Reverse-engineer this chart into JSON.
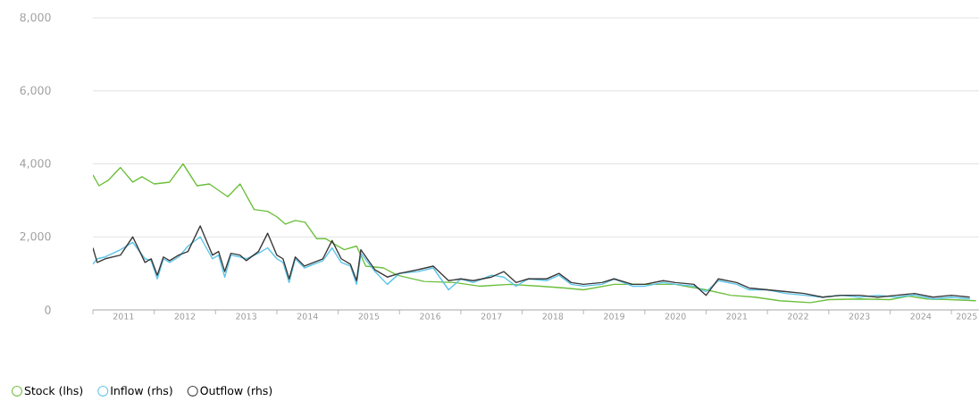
{
  "chart_data": {
    "type": "line",
    "x": [
      2011.0,
      2011.07,
      2011.2,
      2011.45,
      2011.65,
      2011.85,
      2011.95,
      2012.05,
      2012.15,
      2012.25,
      2012.4,
      2012.55,
      2012.75,
      2012.95,
      2013.05,
      2013.15,
      2013.25,
      2013.4,
      2013.5,
      2013.7,
      2013.85,
      2014.0,
      2014.1,
      2014.2,
      2014.3,
      2014.45,
      2014.6,
      2014.75,
      2014.9,
      2015.05,
      2015.2,
      2015.3,
      2015.37,
      2015.6,
      2015.8,
      2016.0,
      2016.3,
      2016.55,
      2016.8,
      2017.0,
      2017.2,
      2017.5,
      2017.7,
      2017.9,
      2018.1,
      2018.4,
      2018.6,
      2018.8,
      2019.0,
      2019.3,
      2019.5,
      2019.8,
      2020.0,
      2020.3,
      2020.5,
      2020.8,
      2021.0,
      2021.2,
      2021.5,
      2021.7,
      2022.0,
      2022.3,
      2022.6,
      2022.9,
      2023.2,
      2023.5,
      2023.8,
      2024.1,
      2024.4,
      2024.7,
      2025.0,
      2025.3
    ],
    "series": [
      {
        "name": "Stock (lhs)",
        "color": "#6cbf3c",
        "x": [
          2011.0,
          2011.1,
          2011.25,
          2011.45,
          2011.65,
          2011.8,
          2012.0,
          2012.25,
          2012.47,
          2012.7,
          2012.9,
          2013.2,
          2013.4,
          2013.63,
          2013.85,
          2014.0,
          2014.14,
          2014.3,
          2014.46,
          2014.65,
          2014.8,
          2014.94,
          2015.1,
          2015.3,
          2015.45,
          2015.74,
          2015.96,
          2016.4,
          2016.9,
          2017.3,
          2017.8,
          2018.3,
          2018.7,
          2019.0,
          2019.5,
          2020.0,
          2020.5,
          2021.0,
          2021.4,
          2021.8,
          2022.2,
          2022.7,
          2023.0,
          2023.5,
          2024.0,
          2024.3,
          2024.6,
          2025.0,
          2025.4
        ],
        "values": [
          3700,
          3400,
          3550,
          3900,
          3500,
          3650,
          3450,
          3500,
          4000,
          3400,
          3450,
          3100,
          3450,
          2750,
          2700,
          2550,
          2350,
          2450,
          2400,
          1950,
          1950,
          1800,
          1650,
          1750,
          1200,
          1150,
          950,
          780,
          750,
          650,
          700,
          650,
          600,
          550,
          700,
          700,
          700,
          550,
          400,
          350,
          250,
          200,
          280,
          300,
          280,
          380,
          300,
          280,
          250
        ]
      },
      {
        "name": "Inflow (rhs)",
        "color": "#5bc4e8",
        "values": [
          1250,
          1400,
          1450,
          1650,
          1850,
          1400,
          1350,
          850,
          1400,
          1300,
          1450,
          1750,
          2000,
          1400,
          1500,
          900,
          1500,
          1450,
          1400,
          1550,
          1700,
          1400,
          1300,
          750,
          1400,
          1150,
          1250,
          1350,
          1700,
          1300,
          1200,
          700,
          1550,
          1050,
          700,
          1000,
          1050,
          1150,
          550,
          850,
          750,
          950,
          900,
          650,
          850,
          800,
          950,
          700,
          650,
          700,
          850,
          650,
          650,
          750,
          700,
          650,
          500,
          800,
          700,
          550,
          550,
          450,
          400,
          350,
          400,
          350,
          400,
          350,
          410,
          300,
          350,
          300
        ]
      },
      {
        "name": "Outflow (rhs)",
        "color": "#3a3a3a",
        "values": [
          1700,
          1300,
          1400,
          1500,
          2000,
          1300,
          1400,
          950,
          1450,
          1350,
          1500,
          1600,
          2300,
          1500,
          1600,
          1050,
          1550,
          1500,
          1350,
          1600,
          2100,
          1500,
          1400,
          850,
          1450,
          1200,
          1300,
          1400,
          1900,
          1400,
          1250,
          800,
          1650,
          1100,
          900,
          1000,
          1100,
          1200,
          800,
          850,
          800,
          900,
          1050,
          750,
          850,
          850,
          1000,
          750,
          700,
          750,
          850,
          700,
          700,
          800,
          750,
          700,
          400,
          850,
          750,
          600,
          550,
          500,
          450,
          350,
          400,
          400,
          350,
          400,
          450,
          350,
          400,
          350
        ]
      }
    ],
    "xlim": [
      2011.0,
      2025.45
    ],
    "xticks": [
      {
        "value": 2011,
        "label": null
      },
      {
        "value": 2011.5,
        "label": "2011"
      },
      {
        "value": 2012,
        "label": null
      },
      {
        "value": 2012.5,
        "label": "2012"
      },
      {
        "value": 2013,
        "label": null
      },
      {
        "value": 2013.5,
        "label": "2013"
      },
      {
        "value": 2014,
        "label": null
      },
      {
        "value": 2014.5,
        "label": "2014"
      },
      {
        "value": 2015,
        "label": null
      },
      {
        "value": 2015.5,
        "label": "2015"
      },
      {
        "value": 2016,
        "label": null
      },
      {
        "value": 2016.5,
        "label": "2016"
      },
      {
        "value": 2017,
        "label": null
      },
      {
        "value": 2017.5,
        "label": "2017"
      },
      {
        "value": 2018,
        "label": null
      },
      {
        "value": 2018.5,
        "label": "2018"
      },
      {
        "value": 2019,
        "label": null
      },
      {
        "value": 2019.5,
        "label": "2019"
      },
      {
        "value": 2020,
        "label": null
      },
      {
        "value": 2020.5,
        "label": "2020"
      },
      {
        "value": 2021,
        "label": null
      },
      {
        "value": 2021.5,
        "label": "2021"
      },
      {
        "value": 2022,
        "label": null
      },
      {
        "value": 2022.5,
        "label": "2022"
      },
      {
        "value": 2023,
        "label": null
      },
      {
        "value": 2023.5,
        "label": "2023"
      },
      {
        "value": 2024,
        "label": null
      },
      {
        "value": 2024.5,
        "label": "2024"
      },
      {
        "value": 2025,
        "label": null
      },
      {
        "value": 2025.25,
        "label": "2025"
      }
    ],
    "ylim": [
      0,
      8000
    ],
    "yticks": [
      {
        "value": 0,
        "label": "0"
      },
      {
        "value": 2000,
        "label": "2,000"
      },
      {
        "value": 4000,
        "label": "4,000"
      },
      {
        "value": 6000,
        "label": "6,000"
      },
      {
        "value": 8000,
        "label": "8,000"
      }
    ],
    "grid": "y",
    "legend": "bottom left",
    "marker": "none",
    "line_style": "solid"
  }
}
